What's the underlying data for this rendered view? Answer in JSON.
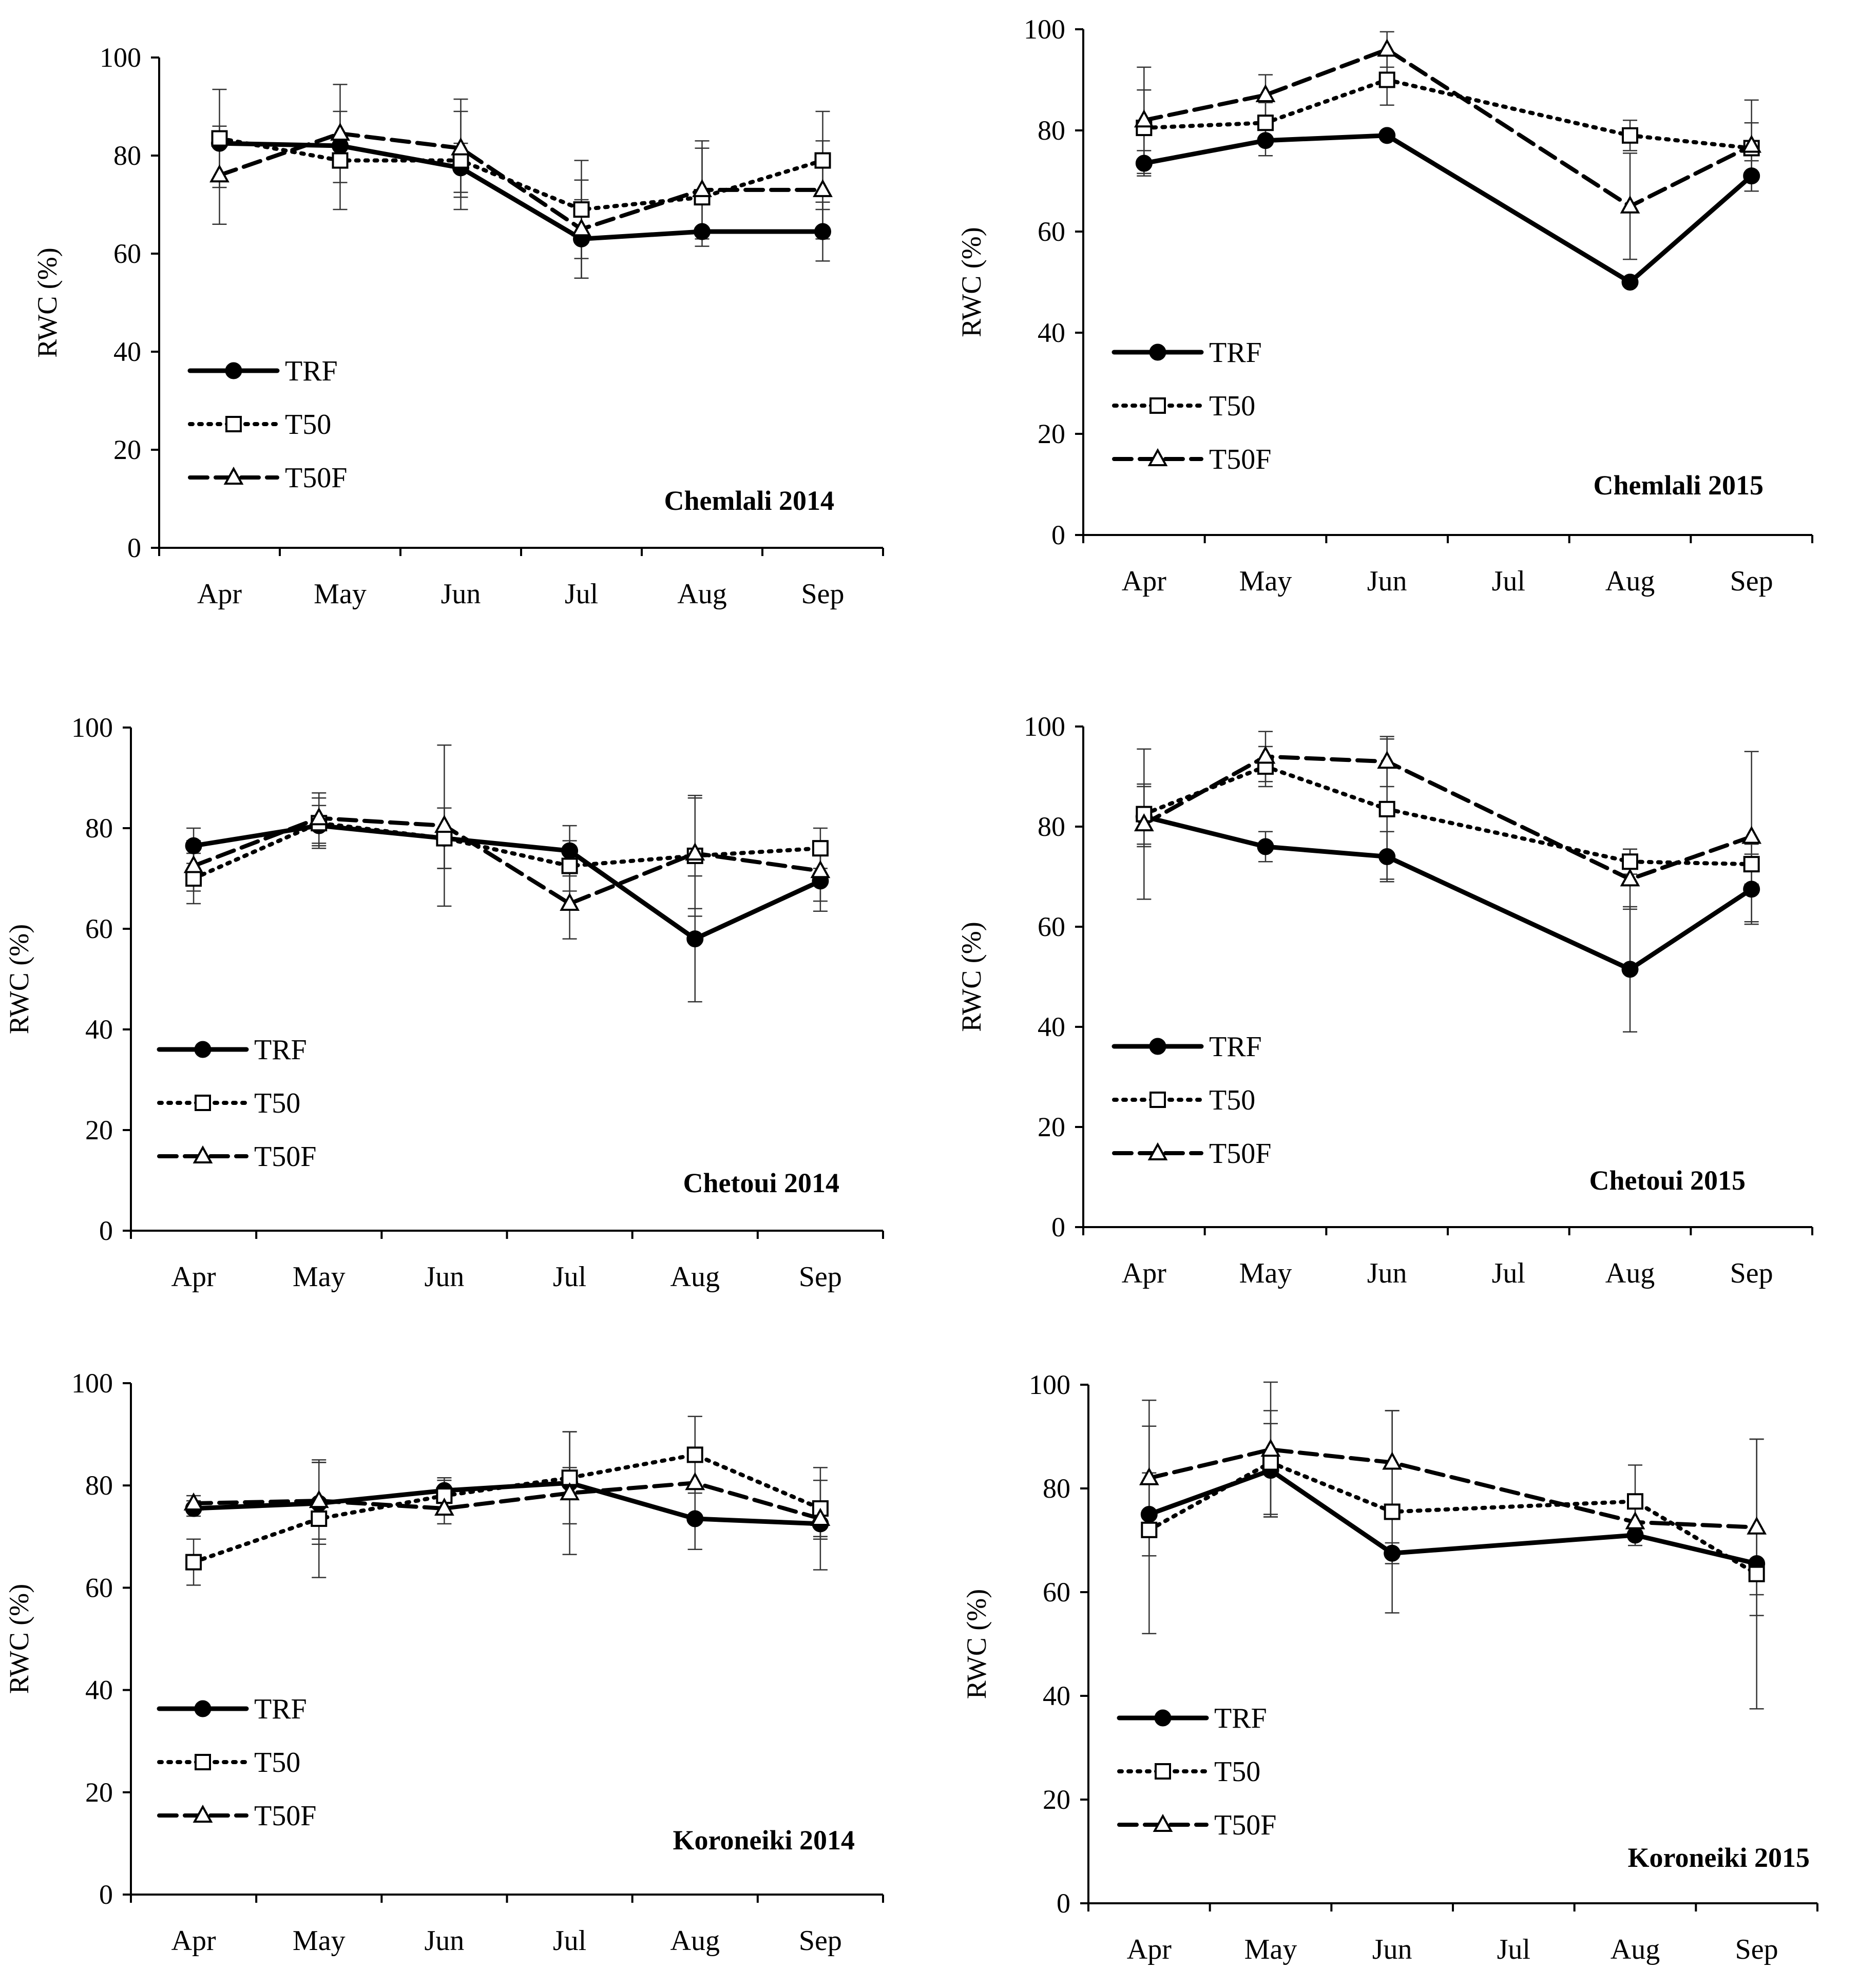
{
  "chart_data": [
    {
      "type": "line",
      "title": "Chemlali 2014",
      "ylabel": "RWC (%)",
      "xlabel": "",
      "ylim": [
        0,
        100
      ],
      "yticks": [
        "0",
        "20",
        "40",
        "60",
        "80",
        "100"
      ],
      "categories": [
        "Apr",
        "May",
        "Jun",
        "Jul",
        "Aug",
        "Sep"
      ],
      "legend": [
        "TRF",
        "T50",
        "T50F"
      ],
      "series": [
        {
          "name": "TRF",
          "values": [
            82.5,
            82,
            77.5,
            63,
            64.5,
            64.5
          ],
          "errors": [
            null,
            null,
            5,
            8,
            null,
            6
          ]
        },
        {
          "name": "T50",
          "values": [
            83.5,
            79,
            79,
            69,
            71.5,
            79
          ],
          "errors": [
            10,
            10,
            10,
            10,
            10,
            10
          ]
        },
        {
          "name": "T50F",
          "values": [
            76,
            84.5,
            81.5,
            65,
            73,
            73
          ],
          "errors": [
            10,
            10,
            10,
            10,
            10,
            10
          ]
        }
      ]
    },
    {
      "type": "line",
      "title": "Chemlali 2015",
      "ylabel": "RWC (%)",
      "xlabel": "",
      "ylim": [
        0,
        100
      ],
      "yticks": [
        "0",
        "20",
        "40",
        "60",
        "80",
        "100"
      ],
      "categories": [
        "Apr",
        "May",
        "Jun",
        "Jul",
        "Aug",
        "Sep"
      ],
      "legend": [
        "TRF",
        "T50",
        "T50F"
      ],
      "series": [
        {
          "name": "TRF",
          "values": [
            73.5,
            78,
            79,
            null,
            50,
            71
          ],
          "errors": [
            2.5,
            3,
            null,
            null,
            null,
            3
          ]
        },
        {
          "name": "T50",
          "values": [
            80.5,
            81.5,
            90,
            null,
            79,
            76.5
          ],
          "errors": [
            7.5,
            4,
            5,
            null,
            3,
            5
          ]
        },
        {
          "name": "T50F",
          "values": [
            82,
            87,
            96,
            null,
            65,
            77
          ],
          "errors": [
            10.5,
            4,
            3.5,
            null,
            10.5,
            9
          ]
        }
      ]
    },
    {
      "type": "line",
      "title": "Chetoui 2014",
      "ylabel": "RWC (%)",
      "xlabel": "",
      "ylim": [
        0,
        100
      ],
      "yticks": [
        "0",
        "20",
        "40",
        "60",
        "80",
        "100"
      ],
      "categories": [
        "Apr",
        "May",
        "Jun",
        "Jul",
        "Aug",
        "Sep"
      ],
      "legend": [
        "TRF",
        "T50",
        "T50F"
      ],
      "series": [
        {
          "name": "TRF",
          "values": [
            76.5,
            80.5,
            78,
            75.5,
            58,
            69.5
          ],
          "errors": [
            3.5,
            4,
            6,
            5,
            12.5,
            6
          ]
        },
        {
          "name": "T50",
          "values": [
            70,
            81,
            78,
            72.5,
            74.5,
            76
          ],
          "errors": [
            5,
            5,
            6,
            5,
            12,
            4
          ]
        },
        {
          "name": "T50F",
          "values": [
            72.5,
            82,
            80.5,
            65,
            75,
            71.5
          ],
          "errors": [
            5,
            5,
            16,
            7,
            11,
            6
          ]
        }
      ]
    },
    {
      "type": "line",
      "title": "Chetoui 2015",
      "ylabel": "RWC (%)",
      "xlabel": "",
      "ylim": [
        0,
        100
      ],
      "yticks": [
        "0",
        "20",
        "40",
        "60",
        "80",
        "100"
      ],
      "categories": [
        "Apr",
        "May",
        "Jun",
        "Jul",
        "Aug",
        "Sep"
      ],
      "legend": [
        "TRF",
        "T50",
        "T50F"
      ],
      "series": [
        {
          "name": "TRF",
          "values": [
            82,
            76,
            74,
            null,
            51.5,
            67.5
          ],
          "errors": [
            6,
            3,
            5,
            null,
            12.5,
            7
          ]
        },
        {
          "name": "T50",
          "values": [
            82.5,
            92,
            83.5,
            null,
            73,
            72.5
          ],
          "errors": [
            6,
            4,
            14,
            null,
            2.5,
            4
          ]
        },
        {
          "name": "T50F",
          "values": [
            80.5,
            94,
            93,
            null,
            69.5,
            78
          ],
          "errors": [
            15,
            5,
            5,
            null,
            6,
            17
          ]
        }
      ]
    },
    {
      "type": "line",
      "title": "Koroneiki  2014",
      "ylabel": "RWC (%)",
      "xlabel": "",
      "ylim": [
        0,
        100
      ],
      "yticks": [
        "0",
        "20",
        "40",
        "60",
        "80",
        "100"
      ],
      "categories": [
        "Apr",
        "May",
        "Jun",
        "Jul",
        "Aug",
        "Sep"
      ],
      "legend": [
        "TRF",
        "T50",
        "T50F"
      ],
      "series": [
        {
          "name": "TRF",
          "values": [
            75.5,
            76.5,
            79,
            80.5,
            73.5,
            72.5
          ],
          "errors": [
            1.5,
            8,
            2.5,
            3,
            6,
            3
          ]
        },
        {
          "name": "T50",
          "values": [
            65,
            73.5,
            78,
            81.5,
            86,
            75.5
          ],
          "errors": [
            4.5,
            11.5,
            3,
            9,
            7.5,
            5.5
          ]
        },
        {
          "name": "T50F",
          "values": [
            76.5,
            77,
            75.5,
            78.5,
            80.5,
            73.5
          ],
          "errors": [
            1.5,
            7.5,
            3,
            12,
            13,
            10
          ]
        }
      ]
    },
    {
      "type": "line",
      "title": "Koroneiki 2015",
      "ylabel": "RWC (%)",
      "xlabel": "",
      "ylim": [
        0,
        100
      ],
      "yticks": [
        "0",
        "20",
        "40",
        "60",
        "80",
        "100"
      ],
      "categories": [
        "Apr",
        "May",
        "Jun",
        "Jul",
        "Aug",
        "Sep"
      ],
      "legend": [
        "TRF",
        "T50",
        "T50F"
      ],
      "series": [
        {
          "name": "TRF",
          "values": [
            75,
            83.5,
            67.5,
            null,
            71,
            65.5
          ],
          "errors": [
            8,
            9,
            2,
            null,
            2,
            6
          ]
        },
        {
          "name": "T50",
          "values": [
            72,
            85,
            75.5,
            null,
            77.5,
            63.5
          ],
          "errors": [
            20,
            10,
            19.5,
            null,
            7,
            26
          ]
        },
        {
          "name": "T50F",
          "values": [
            82,
            87.5,
            85,
            null,
            73.5,
            72.5
          ],
          "errors": [
            15,
            13,
            10,
            null,
            3,
            17
          ]
        }
      ]
    }
  ]
}
